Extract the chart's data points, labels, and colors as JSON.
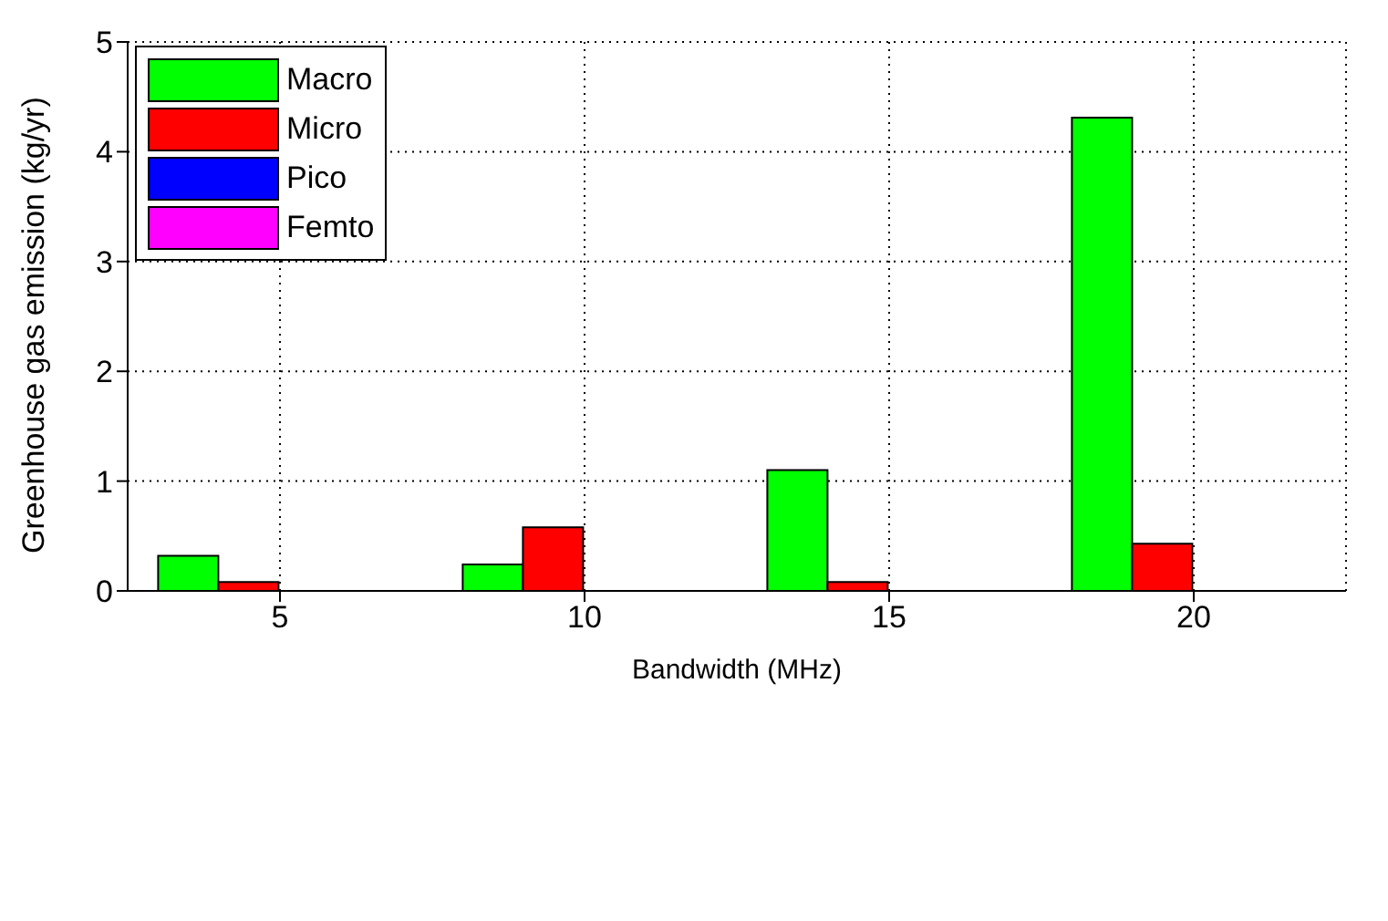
{
  "chart_data": {
    "type": "bar",
    "xlabel": "Bandwidth (MHz)",
    "ylabel": "Greenhouse gas emission (kg/yr)",
    "categories": [
      "5",
      "10",
      "15",
      "20"
    ],
    "series": [
      {
        "name": "Macro",
        "color": "#00ff00",
        "values": [
          0.32,
          0.24,
          1.1,
          4.31
        ]
      },
      {
        "name": "Micro",
        "color": "#ff0000",
        "values": [
          0.08,
          0.58,
          0.08,
          0.43
        ]
      },
      {
        "name": "Pico",
        "color": "#0000ff",
        "values": [
          0,
          0,
          0,
          0
        ]
      },
      {
        "name": "Femto",
        "color": "#ff00ff",
        "values": [
          0,
          0,
          0,
          0
        ]
      }
    ],
    "ylim": [
      0,
      5
    ],
    "yticks": [
      0,
      1,
      2,
      3,
      4,
      5
    ],
    "grid": true,
    "legend": "top left"
  }
}
